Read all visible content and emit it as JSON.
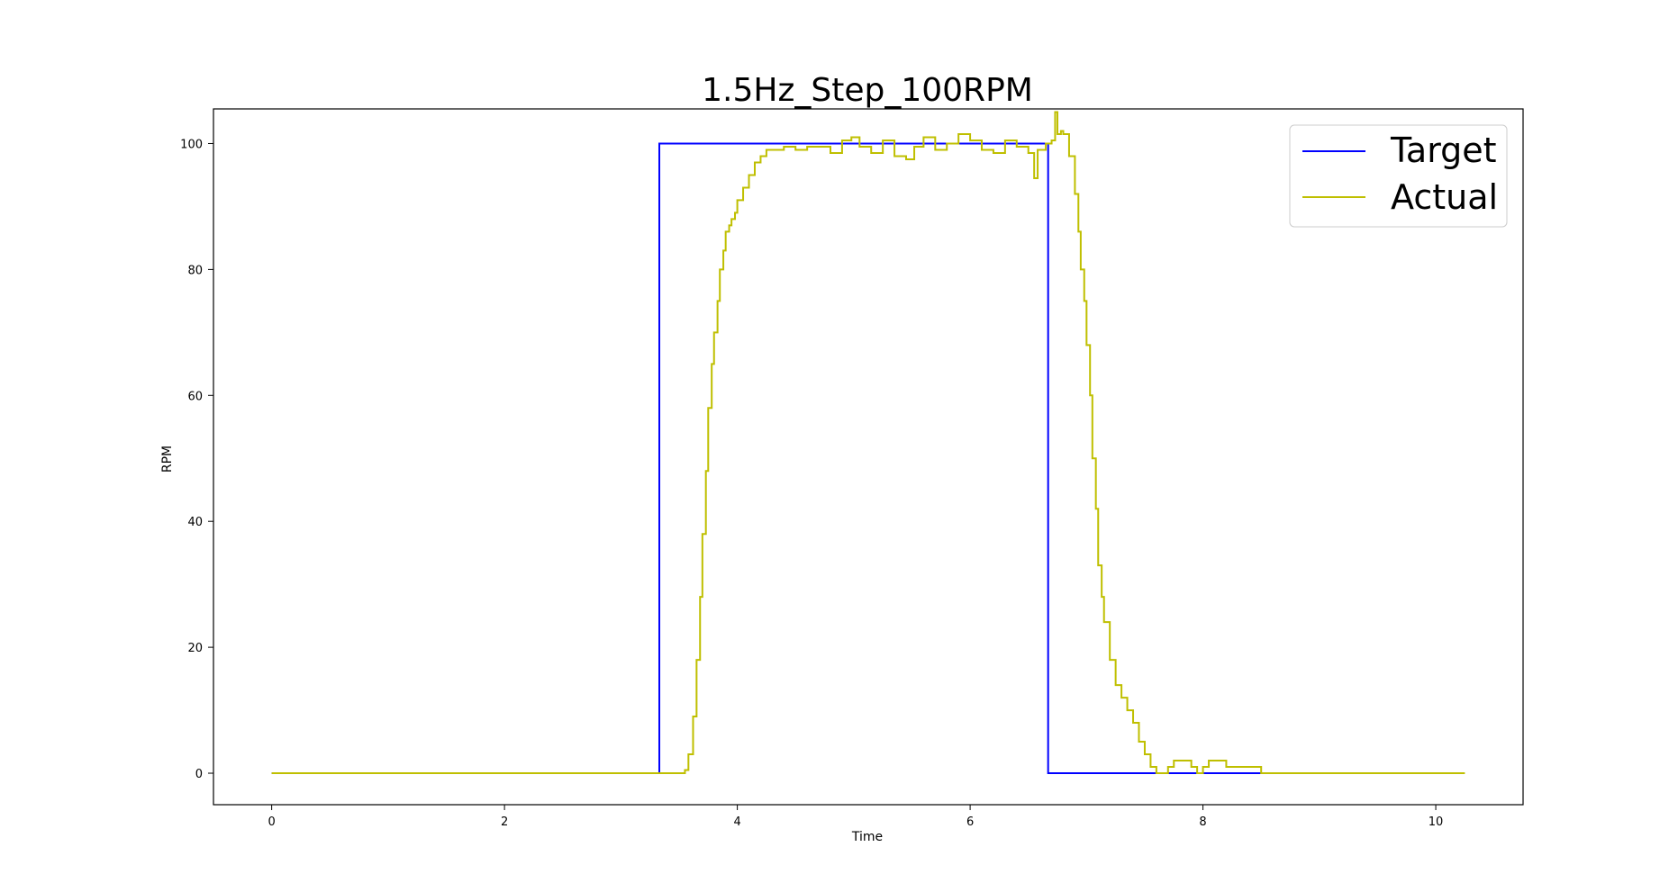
{
  "chart_data": {
    "type": "line",
    "title": "1.5Hz_Step_100RPM",
    "xlabel": "Time",
    "ylabel": "RPM",
    "xlim": [
      -0.5,
      10.75
    ],
    "ylim": [
      -5,
      105.5
    ],
    "xticks": [
      0,
      2,
      4,
      6,
      8,
      10
    ],
    "yticks": [
      0,
      20,
      40,
      60,
      80,
      100
    ],
    "grid": false,
    "legend_position": "upper right",
    "series": [
      {
        "name": "Target",
        "color": "#0000ff",
        "step": true,
        "x": [
          0,
          3.33,
          3.33,
          6.67,
          6.67,
          10
        ],
        "y": [
          0,
          0,
          100,
          100,
          0,
          0
        ]
      },
      {
        "name": "Actual",
        "color": "#bfbf00",
        "step": true,
        "x": [
          0,
          3.55,
          3.58,
          3.62,
          3.65,
          3.68,
          3.7,
          3.73,
          3.75,
          3.78,
          3.8,
          3.83,
          3.85,
          3.88,
          3.9,
          3.93,
          3.95,
          3.98,
          4.0,
          4.05,
          4.1,
          4.15,
          4.2,
          4.25,
          4.3,
          4.4,
          4.5,
          4.6,
          4.7,
          4.8,
          4.9,
          4.98,
          5.05,
          5.15,
          5.25,
          5.35,
          5.45,
          5.52,
          5.6,
          5.7,
          5.8,
          5.9,
          6.0,
          6.1,
          6.2,
          6.3,
          6.4,
          6.5,
          6.55,
          6.58,
          6.6,
          6.65,
          6.7,
          6.73,
          6.75,
          6.78,
          6.8,
          6.85,
          6.9,
          6.93,
          6.95,
          6.98,
          7.0,
          7.03,
          7.05,
          7.08,
          7.1,
          7.13,
          7.15,
          7.2,
          7.25,
          7.3,
          7.35,
          7.4,
          7.45,
          7.5,
          7.55,
          7.6,
          7.65,
          7.7,
          7.75,
          7.8,
          7.9,
          7.95,
          8.0,
          8.05,
          8.15,
          8.2,
          8.5,
          9.0,
          9.5,
          10.0,
          10.25
        ],
        "y": [
          0,
          0.5,
          3,
          9,
          18,
          28,
          38,
          48,
          58,
          65,
          70,
          75,
          80,
          83,
          86,
          87,
          88,
          89,
          91,
          93,
          95,
          97,
          98,
          99,
          99,
          99.5,
          99,
          99.5,
          99.5,
          98.5,
          100.5,
          101,
          99.5,
          98.5,
          100.5,
          98,
          97.5,
          99.5,
          101,
          99,
          100,
          101.5,
          100.5,
          99,
          98.5,
          100.5,
          99.5,
          98.5,
          94.5,
          99,
          99,
          100,
          100.5,
          105,
          101.5,
          102,
          101.5,
          98,
          92,
          86,
          80,
          75,
          68,
          60,
          50,
          42,
          33,
          28,
          24,
          18,
          14,
          12,
          10,
          8,
          5,
          3,
          1,
          0,
          0,
          1,
          2,
          2,
          1,
          0,
          1,
          2,
          2,
          1,
          0,
          0,
          0,
          0,
          0
        ]
      }
    ]
  }
}
